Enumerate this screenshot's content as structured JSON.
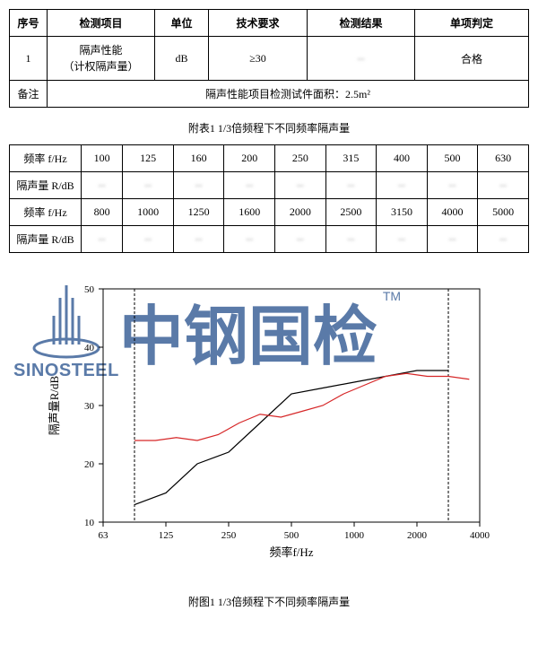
{
  "table1": {
    "headers": [
      "序号",
      "检测项目",
      "单位",
      "技术要求",
      "检测结果",
      "单项判定"
    ],
    "row": {
      "seq": "1",
      "item": "隔声性能\n（计权隔声量）",
      "unit": "dB",
      "req": "≥30",
      "result": "",
      "judge": "合格"
    },
    "note_label": "备注",
    "note": "隔声性能项目检测试件面积：2.5m²"
  },
  "caption1": "附表1   1/3倍频程下不同频率隔声量",
  "table2": {
    "freq_label": "频率 f/Hz",
    "r_label": "隔声量 R/dB",
    "freqs_a": [
      "100",
      "125",
      "160",
      "200",
      "250",
      "315",
      "400",
      "500",
      "630"
    ],
    "freqs_b": [
      "800",
      "1000",
      "1250",
      "1600",
      "2000",
      "2500",
      "3150",
      "4000",
      "5000"
    ]
  },
  "chart": {
    "type": "line",
    "xlabel": "频率f/Hz",
    "ylabel": "隔声量R/dB",
    "xticks": [
      "63",
      "125",
      "250",
      "500",
      "1000",
      "2000",
      "4000"
    ],
    "xtick_positions": [
      0,
      0.1667,
      0.3333,
      0.5,
      0.6667,
      0.8333,
      1.0
    ],
    "ylim": [
      10,
      50
    ],
    "ytick_step": 10,
    "vlines": [
      0.0833,
      0.9167
    ],
    "series1": {
      "color": "#000000",
      "width": 1.2,
      "points": [
        {
          "x": 0.0833,
          "y": 13
        },
        {
          "x": 0.1667,
          "y": 15
        },
        {
          "x": 0.25,
          "y": 20
        },
        {
          "x": 0.3333,
          "y": 22
        },
        {
          "x": 0.4167,
          "y": 27
        },
        {
          "x": 0.5,
          "y": 32
        },
        {
          "x": 0.5833,
          "y": 33
        },
        {
          "x": 0.6667,
          "y": 34
        },
        {
          "x": 0.75,
          "y": 35
        },
        {
          "x": 0.8333,
          "y": 36
        },
        {
          "x": 0.9167,
          "y": 36
        }
      ]
    },
    "series2": {
      "color": "#d62728",
      "width": 1.2,
      "points": [
        {
          "x": 0.0833,
          "y": 24
        },
        {
          "x": 0.1389,
          "y": 24
        },
        {
          "x": 0.1944,
          "y": 24.5
        },
        {
          "x": 0.25,
          "y": 24
        },
        {
          "x": 0.3056,
          "y": 25
        },
        {
          "x": 0.3611,
          "y": 27
        },
        {
          "x": 0.4167,
          "y": 28.5
        },
        {
          "x": 0.4722,
          "y": 28
        },
        {
          "x": 0.5278,
          "y": 29
        },
        {
          "x": 0.5833,
          "y": 30
        },
        {
          "x": 0.6389,
          "y": 32
        },
        {
          "x": 0.6944,
          "y": 33.5
        },
        {
          "x": 0.75,
          "y": 35
        },
        {
          "x": 0.8056,
          "y": 35.5
        },
        {
          "x": 0.8611,
          "y": 35
        },
        {
          "x": 0.9167,
          "y": 35
        },
        {
          "x": 0.9722,
          "y": 34.5
        }
      ]
    },
    "plot_bg": "#ffffff",
    "grid_dash": "3,2",
    "axis_color": "#000000",
    "title_fontsize": 12,
    "tick_fontsize": 11
  },
  "caption2": "附图1   1/3倍频程下不同频率隔声量",
  "watermark": {
    "chinese": "中钢国检",
    "english": "SINOSTEEL",
    "tm": "TM",
    "color": "#5a7aa8"
  }
}
